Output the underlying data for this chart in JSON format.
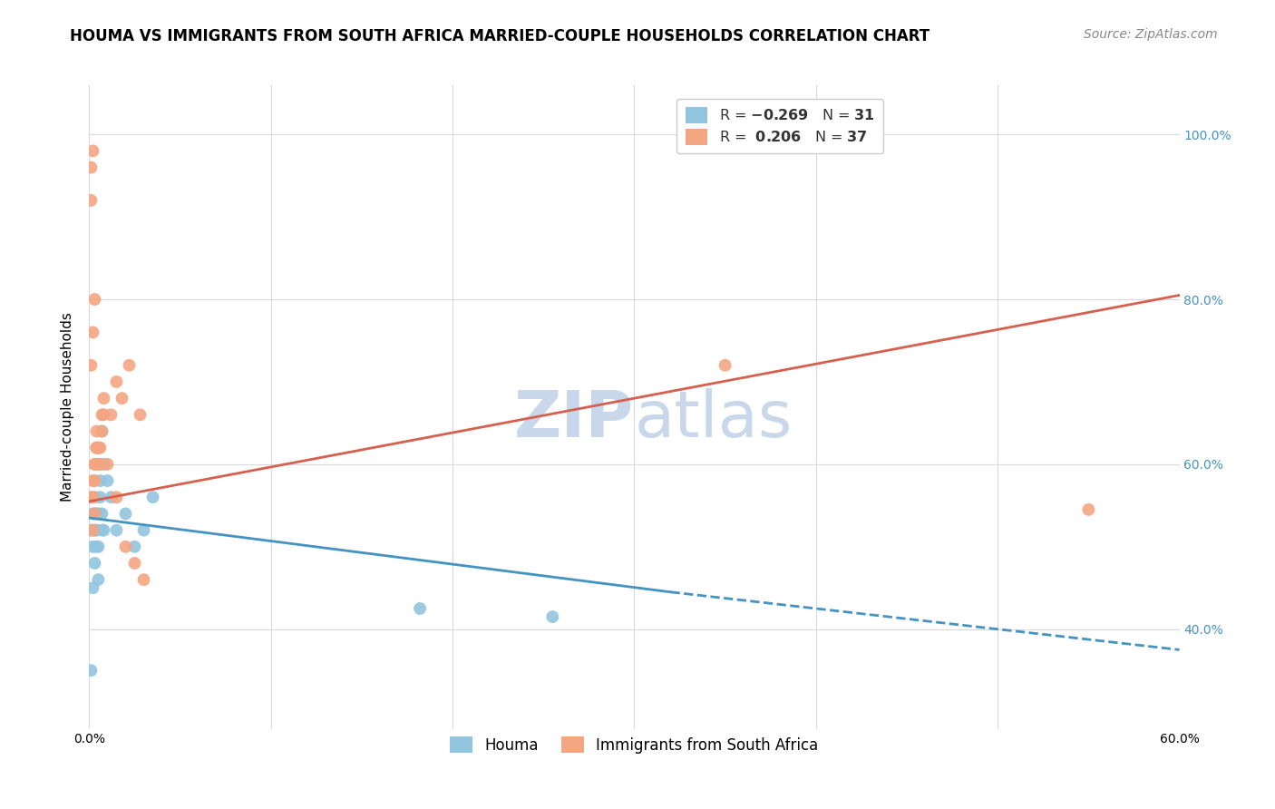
{
  "title": "HOUMA VS IMMIGRANTS FROM SOUTH AFRICA MARRIED-COUPLE HOUSEHOLDS CORRELATION CHART",
  "source": "Source: ZipAtlas.com",
  "ylabel": "Married-couple Households",
  "legend_label1": "Houma",
  "legend_label2": "Immigrants from South Africa",
  "blue_color": "#92c5de",
  "pink_color": "#f4a582",
  "blue_line_color": "#4393c3",
  "pink_line_color": "#d6604d",
  "background_color": "#ffffff",
  "grid_color": "#d9d9d9",
  "watermark_color": "#c8d8ea",
  "xlim": [
    0.0,
    0.6
  ],
  "ylim": [
    0.28,
    1.06
  ],
  "blue_trend_x0": 0.0,
  "blue_trend_y0": 0.535,
  "blue_trend_x1": 0.32,
  "blue_trend_y1": 0.445,
  "blue_trend_x2": 0.6,
  "blue_trend_y2": 0.375,
  "pink_trend_x0": 0.0,
  "pink_trend_y0": 0.555,
  "pink_trend_x1": 0.6,
  "pink_trend_y1": 0.805,
  "houma_x": [
    0.001,
    0.002,
    0.003,
    0.004,
    0.005,
    0.006,
    0.007,
    0.002,
    0.003,
    0.004,
    0.005,
    0.006,
    0.007,
    0.008,
    0.003,
    0.004,
    0.005,
    0.006,
    0.007,
    0.008,
    0.01,
    0.012,
    0.015,
    0.02,
    0.025,
    0.03,
    0.035,
    0.001,
    0.002,
    0.182,
    0.255
  ],
  "houma_y": [
    0.52,
    0.54,
    0.56,
    0.52,
    0.54,
    0.6,
    0.64,
    0.5,
    0.52,
    0.54,
    0.5,
    0.56,
    0.54,
    0.52,
    0.48,
    0.5,
    0.46,
    0.58,
    0.52,
    0.6,
    0.58,
    0.56,
    0.52,
    0.54,
    0.5,
    0.52,
    0.56,
    0.35,
    0.45,
    0.425,
    0.415
  ],
  "sa_x": [
    0.001,
    0.002,
    0.003,
    0.004,
    0.005,
    0.006,
    0.007,
    0.008,
    0.002,
    0.003,
    0.004,
    0.005,
    0.006,
    0.007,
    0.003,
    0.004,
    0.008,
    0.01,
    0.012,
    0.015,
    0.018,
    0.022,
    0.028,
    0.001,
    0.002,
    0.003,
    0.001,
    0.001,
    0.002,
    0.35,
    0.55,
    0.002,
    0.003,
    0.015,
    0.02,
    0.025,
    0.03
  ],
  "sa_y": [
    0.56,
    0.58,
    0.6,
    0.62,
    0.6,
    0.62,
    0.64,
    0.66,
    0.56,
    0.6,
    0.64,
    0.62,
    0.6,
    0.66,
    0.58,
    0.62,
    0.68,
    0.6,
    0.66,
    0.7,
    0.68,
    0.72,
    0.66,
    0.72,
    0.76,
    0.8,
    0.92,
    0.96,
    0.98,
    0.72,
    0.545,
    0.52,
    0.54,
    0.56,
    0.5,
    0.48,
    0.46
  ],
  "title_fontsize": 12,
  "source_fontsize": 10,
  "axis_fontsize": 11,
  "tick_fontsize": 10
}
